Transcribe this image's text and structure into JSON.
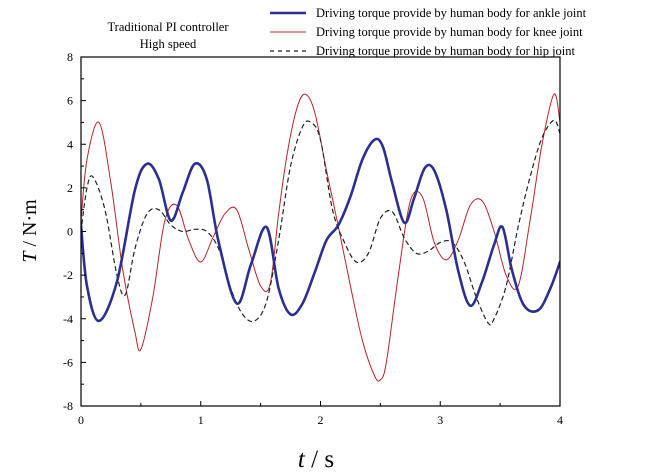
{
  "chart_data": {
    "type": "line",
    "annotation_lines": [
      "Traditional PI controller",
      "High speed"
    ],
    "xlabel_italic": "t",
    "xlabel_unit": " / s",
    "ylabel_italic": "T",
    "ylabel_unit": " / N·m",
    "xlim": [
      0,
      4
    ],
    "ylim": [
      -8,
      8
    ],
    "xticks": [
      "0",
      "1",
      "2",
      "3",
      "4"
    ],
    "yticks": [
      "-8",
      "-6",
      "-4",
      "-2",
      "0",
      "2",
      "4",
      "6",
      "8"
    ],
    "grid": false,
    "legend_position": "top-right",
    "series": [
      {
        "name": "Driving torque provide by human body for ankle joint",
        "color": "#2b2f8f",
        "style": "solid-thick",
        "x": [
          0,
          0.05,
          0.15,
          0.3,
          0.45,
          0.55,
          0.65,
          0.75,
          0.85,
          0.95,
          1.05,
          1.15,
          1.3,
          1.42,
          1.55,
          1.65,
          1.75,
          1.85,
          1.95,
          2.05,
          2.15,
          2.25,
          2.35,
          2.45,
          2.52,
          2.6,
          2.7,
          2.78,
          2.87,
          2.95,
          3.05,
          3.15,
          3.25,
          3.35,
          3.45,
          3.52,
          3.6,
          3.7,
          3.82,
          3.92,
          4.0
        ],
        "y": [
          0.3,
          -2.5,
          -4.1,
          -2.3,
          1.9,
          3.1,
          2.4,
          0.5,
          1.8,
          3.1,
          2.4,
          -0.5,
          -3.3,
          -1.5,
          0.2,
          -2.6,
          -3.8,
          -3.3,
          -1.9,
          -0.4,
          0.3,
          1.6,
          3.3,
          4.2,
          3.9,
          2.2,
          0.4,
          1.5,
          2.9,
          2.8,
          1.0,
          -1.8,
          -3.4,
          -2.3,
          -0.6,
          0.2,
          -1.8,
          -3.4,
          -3.6,
          -2.6,
          -1.4
        ]
      },
      {
        "name": "Driving torque provide by human body for knee joint",
        "color": "#b5252a",
        "style": "solid-thin",
        "x": [
          0,
          0.05,
          0.15,
          0.25,
          0.35,
          0.45,
          0.5,
          0.6,
          0.7,
          0.8,
          0.9,
          1.0,
          1.1,
          1.2,
          1.3,
          1.4,
          1.5,
          1.58,
          1.65,
          1.72,
          1.8,
          1.87,
          1.95,
          2.05,
          2.15,
          2.25,
          2.35,
          2.45,
          2.5,
          2.55,
          2.65,
          2.75,
          2.85,
          2.95,
          3.05,
          3.15,
          3.25,
          3.35,
          3.45,
          3.55,
          3.65,
          3.75,
          3.85,
          3.95,
          4.0
        ],
        "y": [
          0.5,
          3.3,
          5.0,
          2.2,
          -1.8,
          -4.6,
          -5.4,
          -3.0,
          0.5,
          1.2,
          -0.4,
          -1.4,
          -0.3,
          0.8,
          1.0,
          -0.8,
          -2.5,
          -2.4,
          0.8,
          3.5,
          5.6,
          6.3,
          5.5,
          2.8,
          0.2,
          -2.5,
          -5.0,
          -6.6,
          -6.8,
          -6.0,
          -2.0,
          1.4,
          1.6,
          -0.5,
          -1.3,
          -0.4,
          1.2,
          1.4,
          0.0,
          -2.0,
          -2.5,
          0.5,
          4.0,
          6.3,
          5.0
        ]
      },
      {
        "name": "Driving torque provide by human body for hip joint",
        "color": "#222222",
        "style": "dashed",
        "x": [
          0,
          0.05,
          0.1,
          0.2,
          0.3,
          0.37,
          0.45,
          0.55,
          0.65,
          0.75,
          0.85,
          0.95,
          1.05,
          1.15,
          1.25,
          1.35,
          1.45,
          1.55,
          1.65,
          1.75,
          1.85,
          1.92,
          2.0,
          2.1,
          2.2,
          2.3,
          2.4,
          2.5,
          2.6,
          2.7,
          2.8,
          2.9,
          3.0,
          3.1,
          3.2,
          3.3,
          3.4,
          3.45,
          3.55,
          3.65,
          3.75,
          3.85,
          3.95,
          4.0
        ],
        "y": [
          0,
          2.0,
          2.5,
          1.0,
          -2.0,
          -2.9,
          -0.8,
          0.8,
          1.0,
          0.3,
          0.0,
          0.1,
          0.0,
          -0.8,
          -2.6,
          -3.8,
          -4.1,
          -3.2,
          -0.4,
          3.0,
          4.8,
          5.0,
          4.2,
          1.0,
          -0.5,
          -1.4,
          -1.0,
          0.6,
          0.9,
          -0.3,
          -1.0,
          -0.9,
          -0.5,
          -0.5,
          -1.4,
          -3.0,
          -4.2,
          -4.0,
          -2.5,
          0.2,
          2.5,
          4.3,
          5.1,
          4.5
        ]
      }
    ]
  }
}
